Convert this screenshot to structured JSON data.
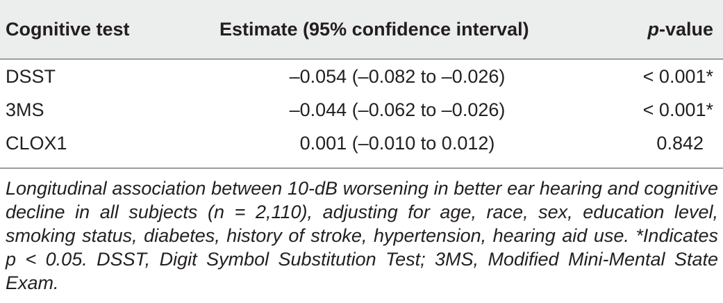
{
  "table": {
    "headers": {
      "test": "Cognitive test",
      "estimate": "Estimate (95% confidence interval)",
      "pvalue_prefix": "p",
      "pvalue_suffix": "-value"
    },
    "rows": [
      {
        "test": "DSST",
        "estimate": "–0.054 (–0.082 to –0.026)",
        "pvalue": "< 0.001*"
      },
      {
        "test": "3MS",
        "estimate": "–0.044 (–0.062 to –0.026)",
        "pvalue": "< 0.001*"
      },
      {
        "test": "CLOX1",
        "estimate": "0.001 (–0.010 to 0.012)",
        "pvalue": "0.842"
      }
    ],
    "footnote": "Longitudinal association between 10-dB worsening in better ear hearing and cognitive decline in all subjects (n = 2,110), adjusting for age, race, sex, education level, smoking status, diabetes, history of stroke, hypertension, hearing aid use. *Indicates p < 0.05. DSST, Digit Symbol Substitution Test; 3MS, Modified Mini-Mental State Exam."
  }
}
